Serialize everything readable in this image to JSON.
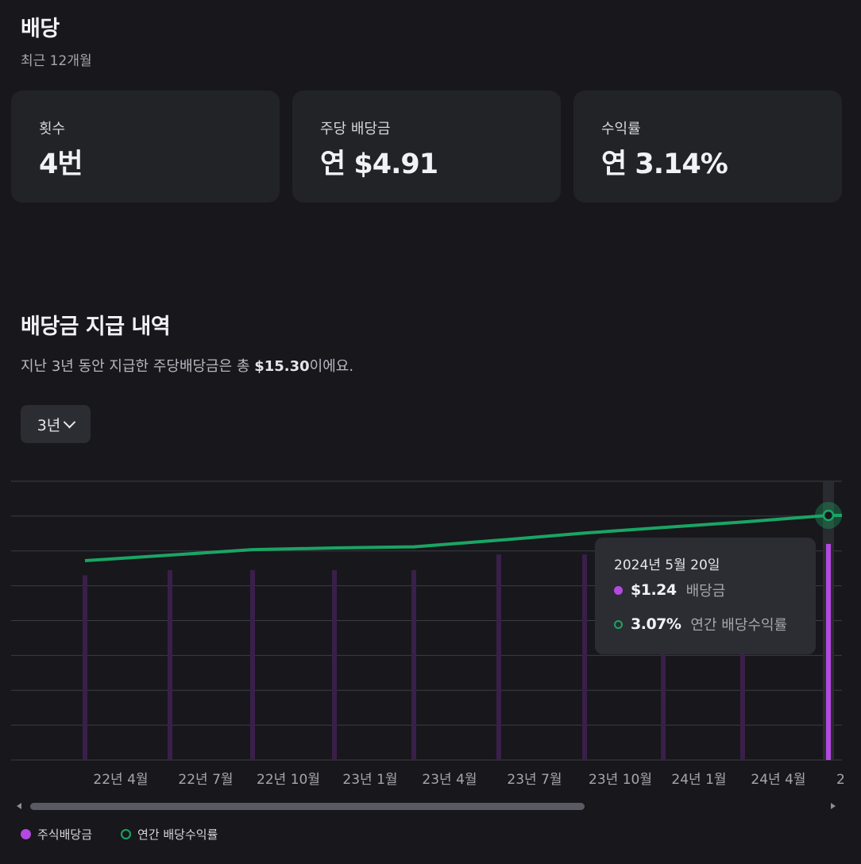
{
  "header": {
    "title": "배당",
    "subtitle": "최근 12개월"
  },
  "cards": [
    {
      "label": "횟수",
      "value": "4번"
    },
    {
      "label": "주당 배당금",
      "value": "연 $4.91"
    },
    {
      "label": "수익률",
      "value": "연 3.14%"
    }
  ],
  "history": {
    "title": "배당금 지급 내역",
    "desc_prefix": "지난 3년 동안 지급한 주당배당금은 총 ",
    "desc_total": "$15.30",
    "desc_suffix": "이에요.",
    "period": "3년"
  },
  "tooltip": {
    "date": "2024년 5월 20일",
    "dividend_value": "$1.24",
    "dividend_label": "배당금",
    "yield_value": "3.07%",
    "yield_label": "연간 배당수익률"
  },
  "legend": {
    "dividend": "주식배당금",
    "yield": "연간 배당수익률"
  },
  "colors": {
    "dividend": "#b349e0",
    "dividend_dim": "#3a1f4a",
    "yield": "#1aa563",
    "grid": "#3c3c44",
    "text": "#a6a6ae"
  },
  "chart_data": {
    "type": "bar",
    "x_tick_labels": [
      "22년 4월",
      "22년 7월",
      "22년 10월",
      "23년 1월",
      "23년 4월",
      "23년 7월",
      "23년 10월",
      "24년 1월",
      "24년 4월",
      "2"
    ],
    "series": [
      {
        "name": "주식배당금",
        "type": "bar",
        "values": [
          1.06,
          1.09,
          1.09,
          1.09,
          1.09,
          1.18,
          1.18,
          1.18,
          1.18,
          1.24
        ]
      },
      {
        "name": "연간 배당수익률",
        "type": "line",
        "values": [
          2.25,
          2.35,
          2.45,
          2.48,
          2.5,
          2.62,
          2.75,
          2.85,
          2.95,
          3.07
        ]
      }
    ],
    "bar_ylim": [
      0,
      1.6
    ],
    "grid": true,
    "highlighted_index": 9,
    "legend_position": "bottom-left"
  }
}
